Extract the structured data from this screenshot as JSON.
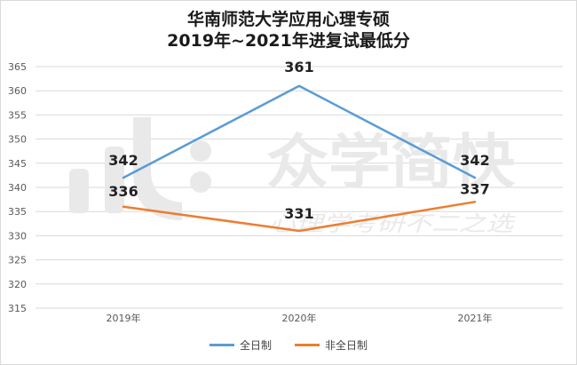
{
  "title_line1": "华南师范大学应用心理专硕",
  "title_line2": "2019年~2021年进复试最低分",
  "watermark": {
    "brand": "众学简快",
    "slogan": "心理学考研不二之选"
  },
  "colors": {
    "series_full_time": "#5b9bd5",
    "series_part_time": "#ed7d31",
    "grid": "#d9d9d9",
    "axis_text": "#595959",
    "label_text": "#222222",
    "watermark": "#e9e9e9"
  },
  "chart_data": {
    "type": "line",
    "categories": [
      "2019年",
      "2020年",
      "2021年"
    ],
    "series": [
      {
        "name": "全日制",
        "values": [
          342,
          361,
          342
        ],
        "labels": [
          "342",
          "361",
          "342"
        ]
      },
      {
        "name": "非全日制",
        "values": [
          336,
          331,
          337
        ],
        "labels": [
          "336",
          "331",
          "337"
        ]
      }
    ],
    "ylim": [
      315,
      365
    ],
    "yticks": [
      "315",
      "320",
      "325",
      "330",
      "335",
      "340",
      "345",
      "350",
      "355",
      "360",
      "365"
    ],
    "grid": true,
    "legend": "bottom-center",
    "xlabel": "",
    "ylabel": ""
  }
}
